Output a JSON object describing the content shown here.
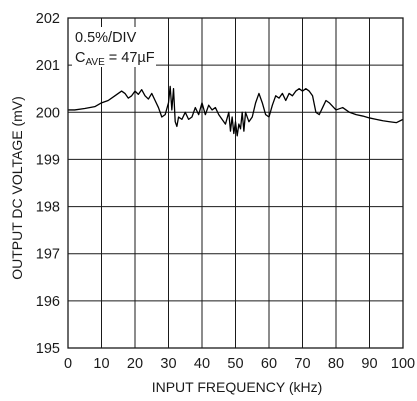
{
  "chart_data": {
    "type": "line",
    "xlabel": "INPUT FREQUENCY (kHz)",
    "ylabel": "OUTPUT DC VOLTAGE (mV)",
    "xlim": [
      0,
      100
    ],
    "ylim": [
      195,
      202
    ],
    "x_ticks": [
      "0",
      "10",
      "20",
      "30",
      "40",
      "50",
      "60",
      "70",
      "80",
      "90",
      "100"
    ],
    "y_ticks": [
      "195",
      "196",
      "197",
      "198",
      "199",
      "200",
      "201",
      "202"
    ],
    "grid": true,
    "annotation": {
      "line1": "0.5%/DIV",
      "line2_main": "C",
      "line2_sub": "AVE",
      "line2_rest": " = 47µF"
    },
    "series": [
      {
        "x": [
          0,
          2,
          5,
          8,
          10,
          12,
          14,
          16,
          17,
          18,
          19,
          20,
          21,
          22,
          23,
          24,
          25,
          26,
          27,
          28,
          29,
          30,
          30.5,
          31,
          31.5,
          32,
          32.5,
          33,
          34,
          35,
          36,
          37,
          38,
          39,
          40,
          41,
          42,
          43,
          44,
          45,
          46,
          47,
          48,
          48.5,
          49,
          49.5,
          50,
          50.5,
          51,
          51.5,
          52,
          52.5,
          53,
          54,
          55,
          56,
          57,
          58,
          59,
          60,
          61,
          62,
          63,
          64,
          65,
          66,
          67,
          68,
          69,
          70,
          71,
          72,
          73,
          74,
          75,
          76,
          77,
          78,
          80,
          82,
          84,
          86,
          88,
          90,
          92,
          94,
          96,
          98,
          100
        ],
        "y": [
          200.05,
          200.05,
          200.08,
          200.12,
          200.2,
          200.25,
          200.35,
          200.45,
          200.4,
          200.3,
          200.35,
          200.45,
          200.38,
          200.48,
          200.35,
          200.28,
          200.4,
          200.25,
          200.1,
          199.9,
          199.95,
          200.2,
          200.55,
          200.05,
          200.5,
          199.8,
          199.7,
          199.9,
          199.85,
          200.0,
          199.85,
          199.9,
          200.1,
          199.95,
          200.2,
          199.95,
          200.15,
          200.05,
          200.1,
          199.95,
          199.85,
          199.75,
          200.0,
          199.6,
          199.9,
          199.55,
          199.8,
          199.5,
          199.75,
          199.65,
          200.0,
          199.6,
          200.0,
          199.8,
          199.9,
          200.2,
          200.4,
          200.2,
          199.95,
          199.9,
          200.15,
          200.35,
          200.3,
          200.4,
          200.25,
          200.4,
          200.35,
          200.45,
          200.5,
          200.45,
          200.5,
          200.45,
          200.35,
          200.0,
          199.95,
          200.1,
          200.25,
          200.2,
          200.05,
          200.1,
          200.0,
          199.95,
          199.92,
          199.88,
          199.85,
          199.82,
          199.8,
          199.78,
          199.85
        ]
      }
    ]
  }
}
